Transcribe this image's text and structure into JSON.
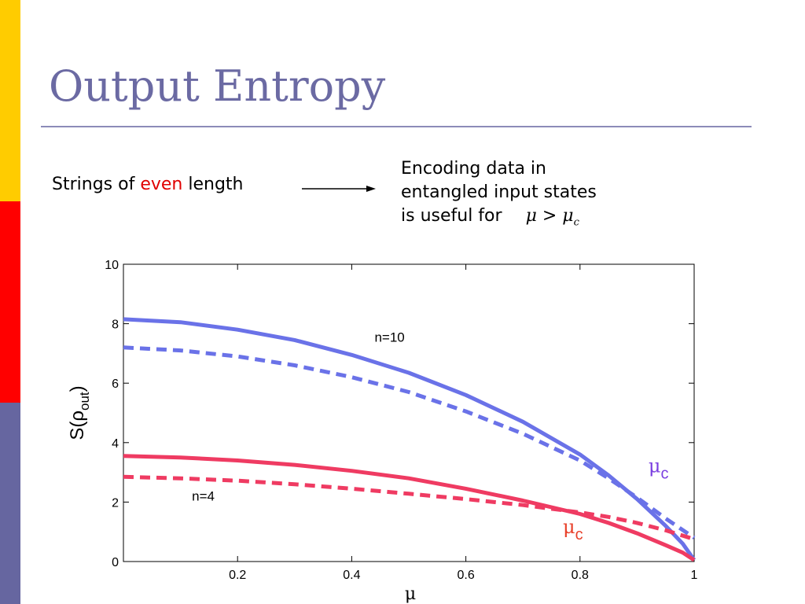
{
  "slide": {
    "title": "Output Entropy",
    "lead_prefix": "Strings of ",
    "lead_highlight": "even",
    "lead_suffix": " length",
    "note_lines": [
      "Encoding data in",
      "entangled input states",
      "is useful for"
    ],
    "note_math": "μ > μ",
    "note_math_sub": "c",
    "colors": {
      "title": "#6b6aa3",
      "highlight": "#e00000",
      "bar_top": "#ffcc00",
      "bar_mid": "#ff0000",
      "bar_bottom": "#6666a0"
    }
  },
  "chart_data": {
    "type": "line",
    "xlabel": "μ",
    "ylabel": "S(ρ_out)",
    "xlim": [
      0,
      1
    ],
    "ylim": [
      0,
      10
    ],
    "xticks": [
      0.2,
      0.4,
      0.6,
      0.8,
      1
    ],
    "yticks": [
      0,
      2,
      4,
      6,
      8,
      10
    ],
    "series": [
      {
        "name": "",
        "color": "#6a72e8",
        "style": "solid",
        "x": [
          0,
          0.1,
          0.2,
          0.3,
          0.4,
          0.5,
          0.6,
          0.7,
          0.8,
          0.85,
          0.9,
          0.95,
          0.98,
          1.0
        ],
        "y": [
          8.15,
          8.05,
          7.8,
          7.45,
          6.95,
          6.35,
          5.6,
          4.7,
          3.6,
          2.9,
          2.1,
          1.2,
          0.6,
          0.05
        ]
      },
      {
        "name": "",
        "color": "#6a72e8",
        "style": "dashed",
        "x": [
          0,
          0.1,
          0.2,
          0.3,
          0.4,
          0.5,
          0.6,
          0.7,
          0.8,
          0.85,
          0.9,
          0.95,
          1.0
        ],
        "y": [
          7.2,
          7.1,
          6.9,
          6.6,
          6.2,
          5.7,
          5.05,
          4.3,
          3.4,
          2.8,
          2.15,
          1.45,
          0.8
        ]
      },
      {
        "name": "",
        "color": "#ef3b62",
        "style": "solid",
        "x": [
          0,
          0.1,
          0.2,
          0.3,
          0.4,
          0.5,
          0.6,
          0.7,
          0.8,
          0.85,
          0.9,
          0.95,
          0.98,
          1.0
        ],
        "y": [
          3.55,
          3.5,
          3.4,
          3.25,
          3.05,
          2.8,
          2.45,
          2.05,
          1.6,
          1.3,
          0.95,
          0.55,
          0.3,
          0.05
        ]
      },
      {
        "name": "",
        "color": "#ef3b62",
        "style": "dashed",
        "x": [
          0,
          0.1,
          0.2,
          0.3,
          0.4,
          0.5,
          0.6,
          0.7,
          0.8,
          0.85,
          0.9,
          0.95,
          1.0
        ],
        "y": [
          2.85,
          2.8,
          2.72,
          2.6,
          2.45,
          2.28,
          2.1,
          1.9,
          1.65,
          1.5,
          1.3,
          1.05,
          0.75
        ]
      }
    ],
    "annotations": [
      {
        "text": "n=10",
        "x": 0.44,
        "y": 7.4,
        "color": "#000000"
      },
      {
        "text": "n=4",
        "x": 0.12,
        "y": 2.05,
        "color": "#000000"
      },
      {
        "text": "μ",
        "sub": "c",
        "x": 0.92,
        "y": 3.0,
        "color": "#7b3fe0"
      },
      {
        "text": "μ",
        "sub": "c",
        "x": 0.77,
        "y": 0.95,
        "color": "#e8402a"
      }
    ]
  }
}
